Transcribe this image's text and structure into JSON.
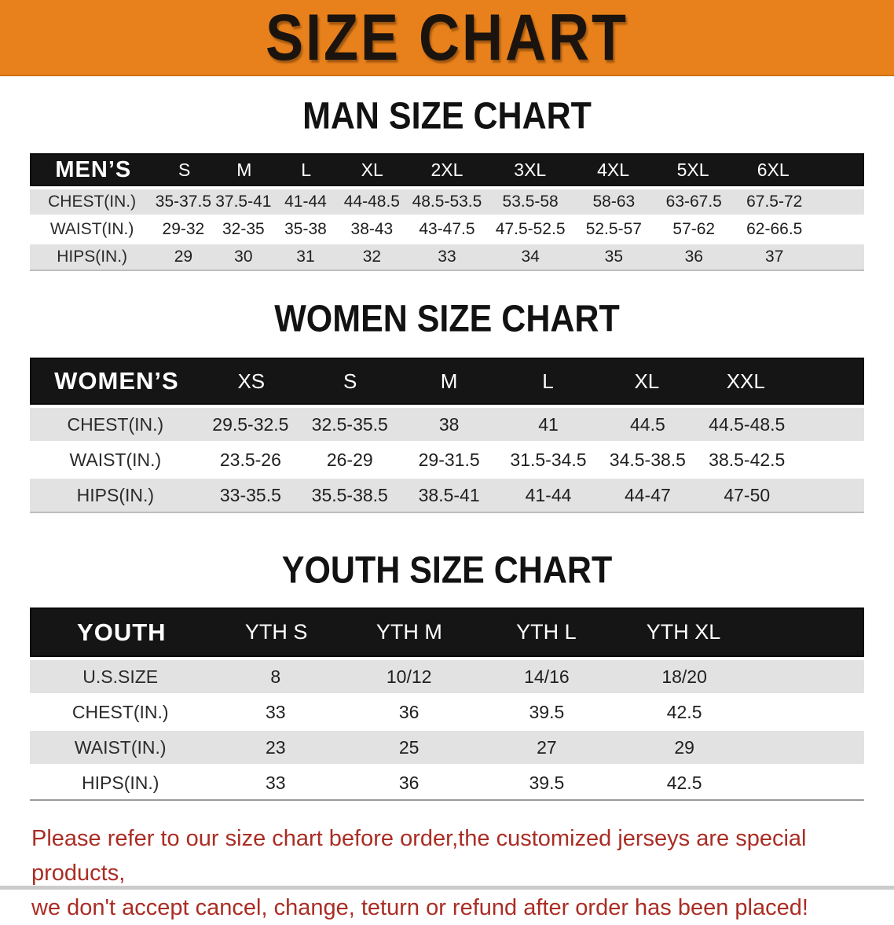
{
  "banner": {
    "title": "SIZE CHART"
  },
  "colors": {
    "banner_bg": "#E8811B",
    "table_header_bg": "#151515",
    "table_header_text": "#FFFFFF",
    "row_alt_bg": "#E2E2E2",
    "note_text": "#AA2D24"
  },
  "chart_data": [
    {
      "type": "table",
      "title": "MAN SIZE CHART",
      "header": [
        "MEN’S",
        "S",
        "M",
        "L",
        "XL",
        "2XL",
        "3XL",
        "4XL",
        "5XL",
        "6XL"
      ],
      "rows": [
        [
          "CHEST(IN.)",
          "35-37.5",
          "37.5-41",
          "41-44",
          "44-48.5",
          "48.5-53.5",
          "53.5-58",
          "58-63",
          "63-67.5",
          "67.5-72"
        ],
        [
          "WAIST(IN.)",
          "29-32",
          "32-35",
          "35-38",
          "38-43",
          "43-47.5",
          "47.5-52.5",
          "52.5-57",
          "57-62",
          "62-66.5"
        ],
        [
          "HIPS(IN.)",
          "29",
          "30",
          "31",
          "32",
          "33",
          "34",
          "35",
          "36",
          "37"
        ]
      ]
    },
    {
      "type": "table",
      "title": "WOMEN SIZE CHART",
      "header": [
        "WOMEN’S",
        "XS",
        "S",
        "M",
        "L",
        "XL",
        "XXL"
      ],
      "rows": [
        [
          "CHEST(IN.)",
          "29.5-32.5",
          "32.5-35.5",
          "38",
          "41",
          "44.5",
          "44.5-48.5"
        ],
        [
          "WAIST(IN.)",
          "23.5-26",
          "26-29",
          "29-31.5",
          "31.5-34.5",
          "34.5-38.5",
          "38.5-42.5"
        ],
        [
          "HIPS(IN.)",
          "33-35.5",
          "35.5-38.5",
          "38.5-41",
          "41-44",
          "44-47",
          "47-50"
        ]
      ]
    },
    {
      "type": "table",
      "title": "YOUTH SIZE CHART",
      "header": [
        "YOUTH",
        "YTH S",
        "YTH M",
        "YTH L",
        "YTH XL"
      ],
      "rows": [
        [
          "U.S.SIZE",
          "8",
          "10/12",
          "14/16",
          "18/20"
        ],
        [
          "CHEST(IN.)",
          "33",
          "36",
          "39.5",
          "42.5"
        ],
        [
          "WAIST(IN.)",
          "23",
          "25",
          "27",
          "29"
        ],
        [
          "HIPS(IN.)",
          "33",
          "36",
          "39.5",
          "42.5"
        ]
      ]
    }
  ],
  "note": {
    "line1": "Please refer to our size chart before order,the customized jerseys are special products,",
    "line2": "we don't accept cancel, change, teturn or refund after order has been placed!"
  }
}
